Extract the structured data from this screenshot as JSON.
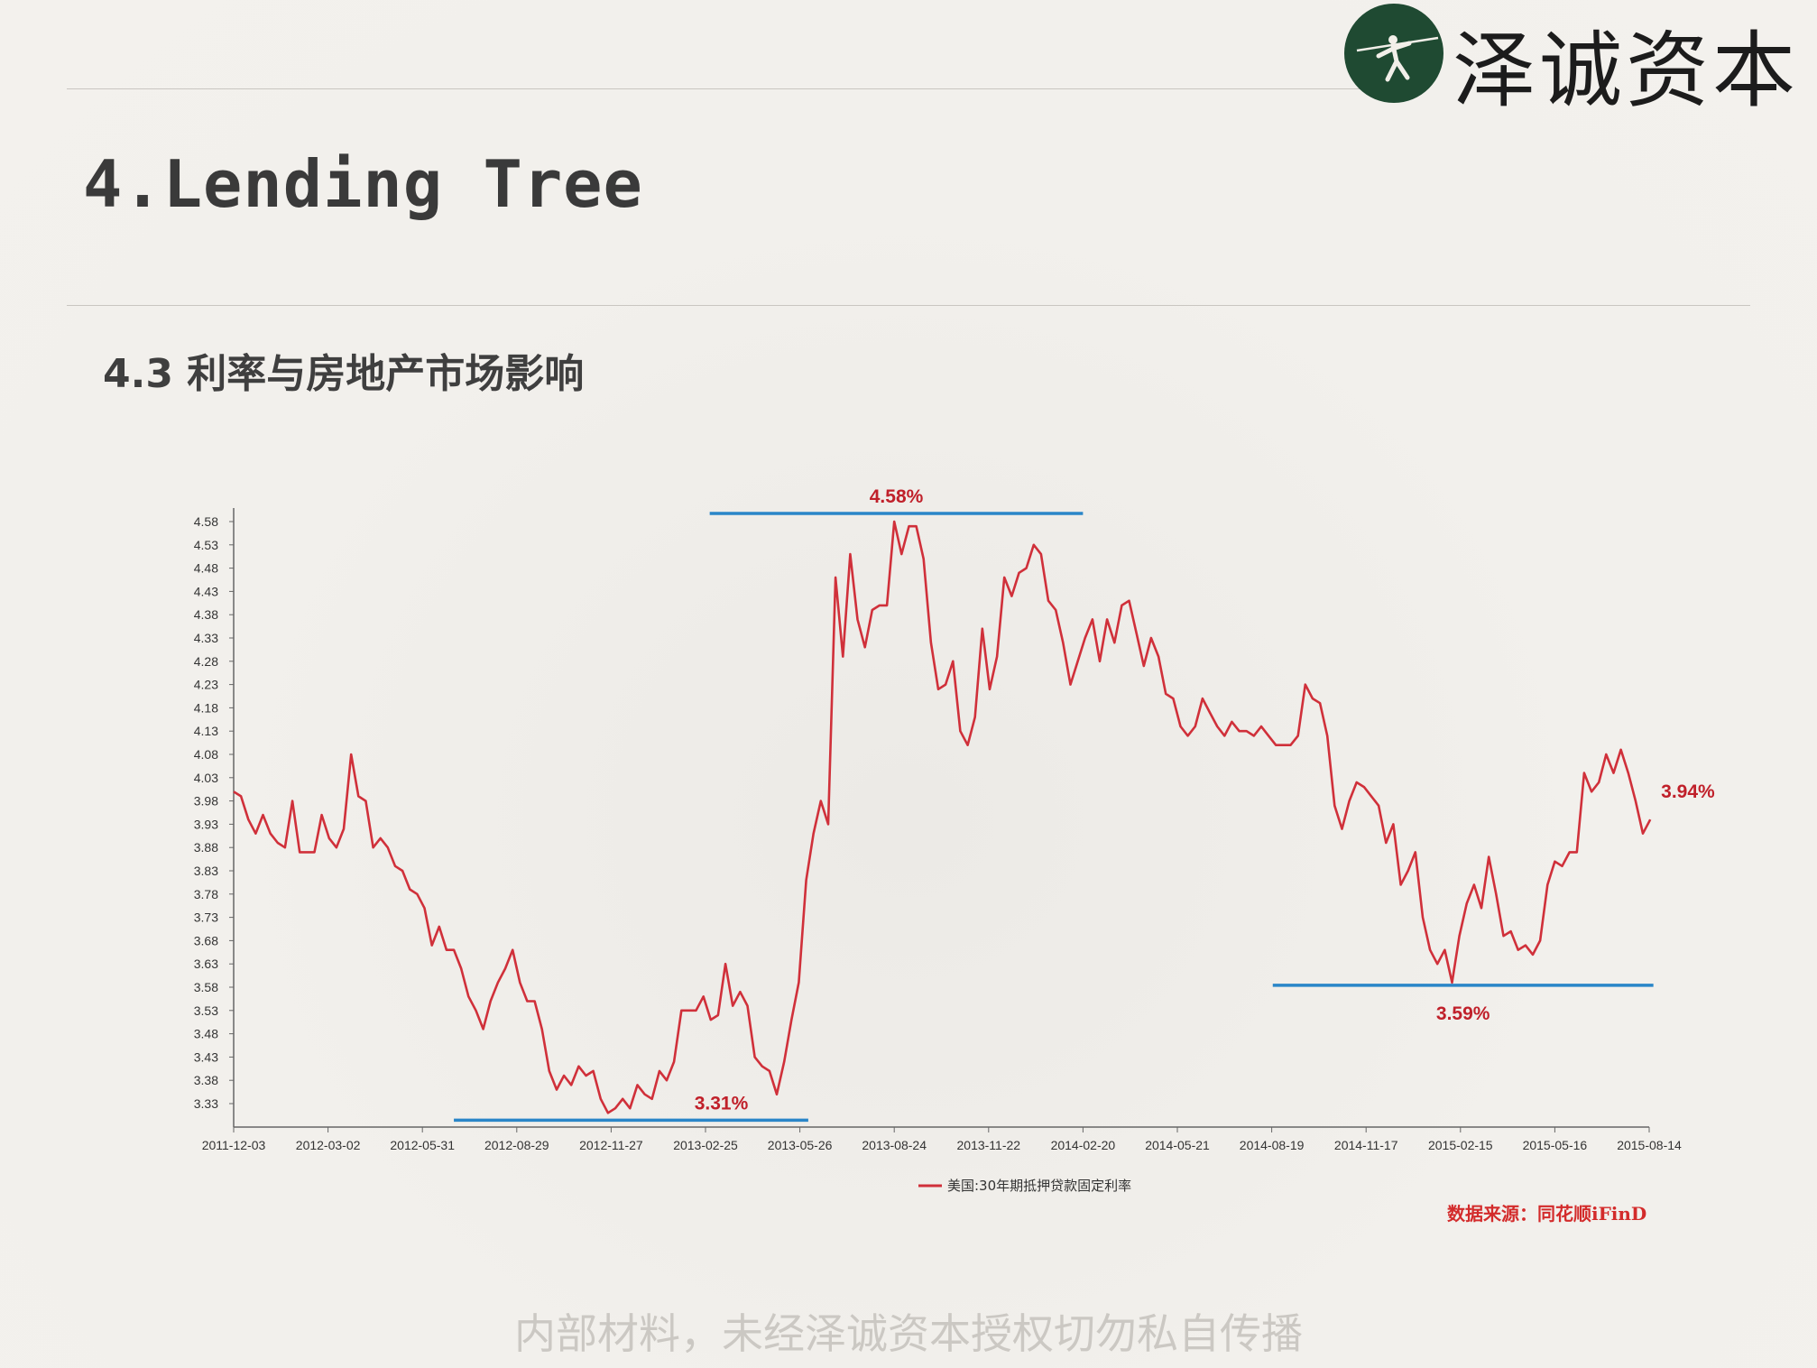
{
  "header": {
    "logo_text": "泽诚资本",
    "title": "4.Lending Tree",
    "subtitle": "4.3 利率与房地产市场影响"
  },
  "colors": {
    "series": "#d0303a",
    "annotation_line": "#2a86c8",
    "annotation_text": "#c0202a",
    "logo_green": "#1f4a32"
  },
  "chart_data": {
    "type": "line",
    "title": "",
    "xlabel": "",
    "ylabel": "",
    "ylim": [
      3.31,
      4.6
    ],
    "y_ticks": [
      "4.58",
      "4.53",
      "4.48",
      "4.43",
      "4.38",
      "4.33",
      "4.28",
      "4.23",
      "4.18",
      "4.13",
      "4.08",
      "4.03",
      "3.98",
      "3.93",
      "3.88",
      "3.83",
      "3.78",
      "3.73",
      "3.68",
      "3.63",
      "3.58",
      "3.53",
      "3.48",
      "3.43",
      "3.38",
      "3.33"
    ],
    "x_ticks": [
      "2011-12-03",
      "2012-03-02",
      "2012-05-31",
      "2012-08-29",
      "2012-11-27",
      "2013-02-25",
      "2013-05-26",
      "2013-08-24",
      "2013-11-22",
      "2014-02-20",
      "2014-05-21",
      "2014-08-19",
      "2014-11-17",
      "2015-02-15",
      "2015-05-16",
      "2015-08-14"
    ],
    "legend": "top-bottom-center",
    "series": [
      {
        "name": "美国:30年期抵押贷款固定利率",
        "points": [
          [
            "2011-12-03",
            4.0
          ],
          [
            "2011-12-10",
            3.99
          ],
          [
            "2011-12-17",
            3.94
          ],
          [
            "2011-12-24",
            3.91
          ],
          [
            "2011-12-31",
            3.95
          ],
          [
            "2012-01-07",
            3.91
          ],
          [
            "2012-01-14",
            3.89
          ],
          [
            "2012-01-21",
            3.88
          ],
          [
            "2012-01-28",
            3.98
          ],
          [
            "2012-02-04",
            3.87
          ],
          [
            "2012-02-11",
            3.87
          ],
          [
            "2012-02-18",
            3.87
          ],
          [
            "2012-02-25",
            3.95
          ],
          [
            "2012-03-03",
            3.9
          ],
          [
            "2012-03-10",
            3.88
          ],
          [
            "2012-03-17",
            3.92
          ],
          [
            "2012-03-24",
            4.08
          ],
          [
            "2012-03-31",
            3.99
          ],
          [
            "2012-04-07",
            3.98
          ],
          [
            "2012-04-14",
            3.88
          ],
          [
            "2012-04-21",
            3.9
          ],
          [
            "2012-04-28",
            3.88
          ],
          [
            "2012-05-05",
            3.84
          ],
          [
            "2012-05-12",
            3.83
          ],
          [
            "2012-05-19",
            3.79
          ],
          [
            "2012-05-26",
            3.78
          ],
          [
            "2012-06-02",
            3.75
          ],
          [
            "2012-06-09",
            3.67
          ],
          [
            "2012-06-16",
            3.71
          ],
          [
            "2012-06-23",
            3.66
          ],
          [
            "2012-06-30",
            3.66
          ],
          [
            "2012-07-07",
            3.62
          ],
          [
            "2012-07-14",
            3.56
          ],
          [
            "2012-07-21",
            3.53
          ],
          [
            "2012-07-28",
            3.49
          ],
          [
            "2012-08-04",
            3.55
          ],
          [
            "2012-08-11",
            3.59
          ],
          [
            "2012-08-18",
            3.62
          ],
          [
            "2012-08-25",
            3.66
          ],
          [
            "2012-09-01",
            3.59
          ],
          [
            "2012-09-08",
            3.55
          ],
          [
            "2012-09-15",
            3.55
          ],
          [
            "2012-09-22",
            3.49
          ],
          [
            "2012-09-29",
            3.4
          ],
          [
            "2012-10-06",
            3.36
          ],
          [
            "2012-10-13",
            3.39
          ],
          [
            "2012-10-20",
            3.37
          ],
          [
            "2012-10-27",
            3.41
          ],
          [
            "2012-11-03",
            3.39
          ],
          [
            "2012-11-10",
            3.4
          ],
          [
            "2012-11-17",
            3.34
          ],
          [
            "2012-11-24",
            3.31
          ],
          [
            "2012-12-01",
            3.32
          ],
          [
            "2012-12-08",
            3.34
          ],
          [
            "2012-12-15",
            3.32
          ],
          [
            "2012-12-22",
            3.37
          ],
          [
            "2012-12-29",
            3.35
          ],
          [
            "2013-01-05",
            3.34
          ],
          [
            "2013-01-12",
            3.4
          ],
          [
            "2013-01-19",
            3.38
          ],
          [
            "2013-01-26",
            3.42
          ],
          [
            "2013-02-02",
            3.53
          ],
          [
            "2013-02-09",
            3.53
          ],
          [
            "2013-02-16",
            3.53
          ],
          [
            "2013-02-23",
            3.56
          ],
          [
            "2013-03-02",
            3.51
          ],
          [
            "2013-03-09",
            3.52
          ],
          [
            "2013-03-16",
            3.63
          ],
          [
            "2013-03-23",
            3.54
          ],
          [
            "2013-03-30",
            3.57
          ],
          [
            "2013-04-06",
            3.54
          ],
          [
            "2013-04-13",
            3.43
          ],
          [
            "2013-04-20",
            3.41
          ],
          [
            "2013-04-27",
            3.4
          ],
          [
            "2013-05-04",
            3.35
          ],
          [
            "2013-05-11",
            3.42
          ],
          [
            "2013-05-18",
            3.51
          ],
          [
            "2013-05-25",
            3.59
          ],
          [
            "2013-06-01",
            3.81
          ],
          [
            "2013-06-08",
            3.91
          ],
          [
            "2013-06-15",
            3.98
          ],
          [
            "2013-06-22",
            3.93
          ],
          [
            "2013-06-29",
            4.46
          ],
          [
            "2013-07-06",
            4.29
          ],
          [
            "2013-07-13",
            4.51
          ],
          [
            "2013-07-20",
            4.37
          ],
          [
            "2013-07-27",
            4.31
          ],
          [
            "2013-08-03",
            4.39
          ],
          [
            "2013-08-10",
            4.4
          ],
          [
            "2013-08-17",
            4.4
          ],
          [
            "2013-08-24",
            4.58
          ],
          [
            "2013-08-31",
            4.51
          ],
          [
            "2013-09-07",
            4.57
          ],
          [
            "2013-09-14",
            4.57
          ],
          [
            "2013-09-21",
            4.5
          ],
          [
            "2013-09-28",
            4.32
          ],
          [
            "2013-10-05",
            4.22
          ],
          [
            "2013-10-12",
            4.23
          ],
          [
            "2013-10-19",
            4.28
          ],
          [
            "2013-10-26",
            4.13
          ],
          [
            "2013-11-02",
            4.1
          ],
          [
            "2013-11-09",
            4.16
          ],
          [
            "2013-11-16",
            4.35
          ],
          [
            "2013-11-23",
            4.22
          ],
          [
            "2013-11-30",
            4.29
          ],
          [
            "2013-12-07",
            4.46
          ],
          [
            "2013-12-14",
            4.42
          ],
          [
            "2013-12-21",
            4.47
          ],
          [
            "2013-12-28",
            4.48
          ],
          [
            "2014-01-04",
            4.53
          ],
          [
            "2014-01-11",
            4.51
          ],
          [
            "2014-01-18",
            4.41
          ],
          [
            "2014-01-25",
            4.39
          ],
          [
            "2014-02-01",
            4.32
          ],
          [
            "2014-02-08",
            4.23
          ],
          [
            "2014-02-15",
            4.28
          ],
          [
            "2014-02-22",
            4.33
          ],
          [
            "2014-03-01",
            4.37
          ],
          [
            "2014-03-08",
            4.28
          ],
          [
            "2014-03-15",
            4.37
          ],
          [
            "2014-03-22",
            4.32
          ],
          [
            "2014-03-29",
            4.4
          ],
          [
            "2014-04-05",
            4.41
          ],
          [
            "2014-04-12",
            4.34
          ],
          [
            "2014-04-19",
            4.27
          ],
          [
            "2014-04-26",
            4.33
          ],
          [
            "2014-05-03",
            4.29
          ],
          [
            "2014-05-10",
            4.21
          ],
          [
            "2014-05-17",
            4.2
          ],
          [
            "2014-05-24",
            4.14
          ],
          [
            "2014-05-31",
            4.12
          ],
          [
            "2014-06-07",
            4.14
          ],
          [
            "2014-06-14",
            4.2
          ],
          [
            "2014-06-21",
            4.17
          ],
          [
            "2014-06-28",
            4.14
          ],
          [
            "2014-07-05",
            4.12
          ],
          [
            "2014-07-12",
            4.15
          ],
          [
            "2014-07-19",
            4.13
          ],
          [
            "2014-07-26",
            4.13
          ],
          [
            "2014-08-02",
            4.12
          ],
          [
            "2014-08-09",
            4.14
          ],
          [
            "2014-08-16",
            4.12
          ],
          [
            "2014-08-23",
            4.1
          ],
          [
            "2014-08-30",
            4.1
          ],
          [
            "2014-09-06",
            4.1
          ],
          [
            "2014-09-13",
            4.12
          ],
          [
            "2014-09-20",
            4.23
          ],
          [
            "2014-09-27",
            4.2
          ],
          [
            "2014-10-04",
            4.19
          ],
          [
            "2014-10-11",
            4.12
          ],
          [
            "2014-10-18",
            3.97
          ],
          [
            "2014-10-25",
            3.92
          ],
          [
            "2014-11-01",
            3.98
          ],
          [
            "2014-11-08",
            4.02
          ],
          [
            "2014-11-15",
            4.01
          ],
          [
            "2014-11-22",
            3.99
          ],
          [
            "2014-11-29",
            3.97
          ],
          [
            "2014-12-06",
            3.89
          ],
          [
            "2014-12-13",
            3.93
          ],
          [
            "2014-12-20",
            3.8
          ],
          [
            "2014-12-27",
            3.83
          ],
          [
            "2015-01-03",
            3.87
          ],
          [
            "2015-01-10",
            3.73
          ],
          [
            "2015-01-17",
            3.66
          ],
          [
            "2015-01-24",
            3.63
          ],
          [
            "2015-01-31",
            3.66
          ],
          [
            "2015-02-07",
            3.59
          ],
          [
            "2015-02-14",
            3.69
          ],
          [
            "2015-02-21",
            3.76
          ],
          [
            "2015-02-28",
            3.8
          ],
          [
            "2015-03-07",
            3.75
          ],
          [
            "2015-03-14",
            3.86
          ],
          [
            "2015-03-21",
            3.78
          ],
          [
            "2015-03-28",
            3.69
          ],
          [
            "2015-04-04",
            3.7
          ],
          [
            "2015-04-11",
            3.66
          ],
          [
            "2015-04-18",
            3.67
          ],
          [
            "2015-04-25",
            3.65
          ],
          [
            "2015-05-02",
            3.68
          ],
          [
            "2015-05-09",
            3.8
          ],
          [
            "2015-05-16",
            3.85
          ],
          [
            "2015-05-23",
            3.84
          ],
          [
            "2015-05-30",
            3.87
          ],
          [
            "2015-06-06",
            3.87
          ],
          [
            "2015-06-13",
            4.04
          ],
          [
            "2015-06-20",
            4.0
          ],
          [
            "2015-06-27",
            4.02
          ],
          [
            "2015-07-04",
            4.08
          ],
          [
            "2015-07-11",
            4.04
          ],
          [
            "2015-07-18",
            4.09
          ],
          [
            "2015-07-25",
            4.04
          ],
          [
            "2015-08-01",
            3.98
          ],
          [
            "2015-08-08",
            3.91
          ],
          [
            "2015-08-15",
            3.94
          ]
        ]
      }
    ],
    "annotations": [
      {
        "label": "4.58%",
        "value": 4.58,
        "from": "2013-03-01",
        "to": "2014-02-20",
        "label_position": "above"
      },
      {
        "label": "3.31%",
        "value": 3.31,
        "from": "2012-06-30",
        "to": "2013-06-03",
        "label_position": "above"
      },
      {
        "label": "3.59%",
        "value": 3.59,
        "from": "2014-08-20",
        "to": "2015-08-18",
        "label_position": "below"
      },
      {
        "label": "3.94%",
        "value": 3.94,
        "point_label": true
      }
    ],
    "source_note": "数据来源：同花顺iFinD"
  },
  "footer": {
    "text": "内部材料，未经泽诚资本授权切勿私自传播"
  }
}
